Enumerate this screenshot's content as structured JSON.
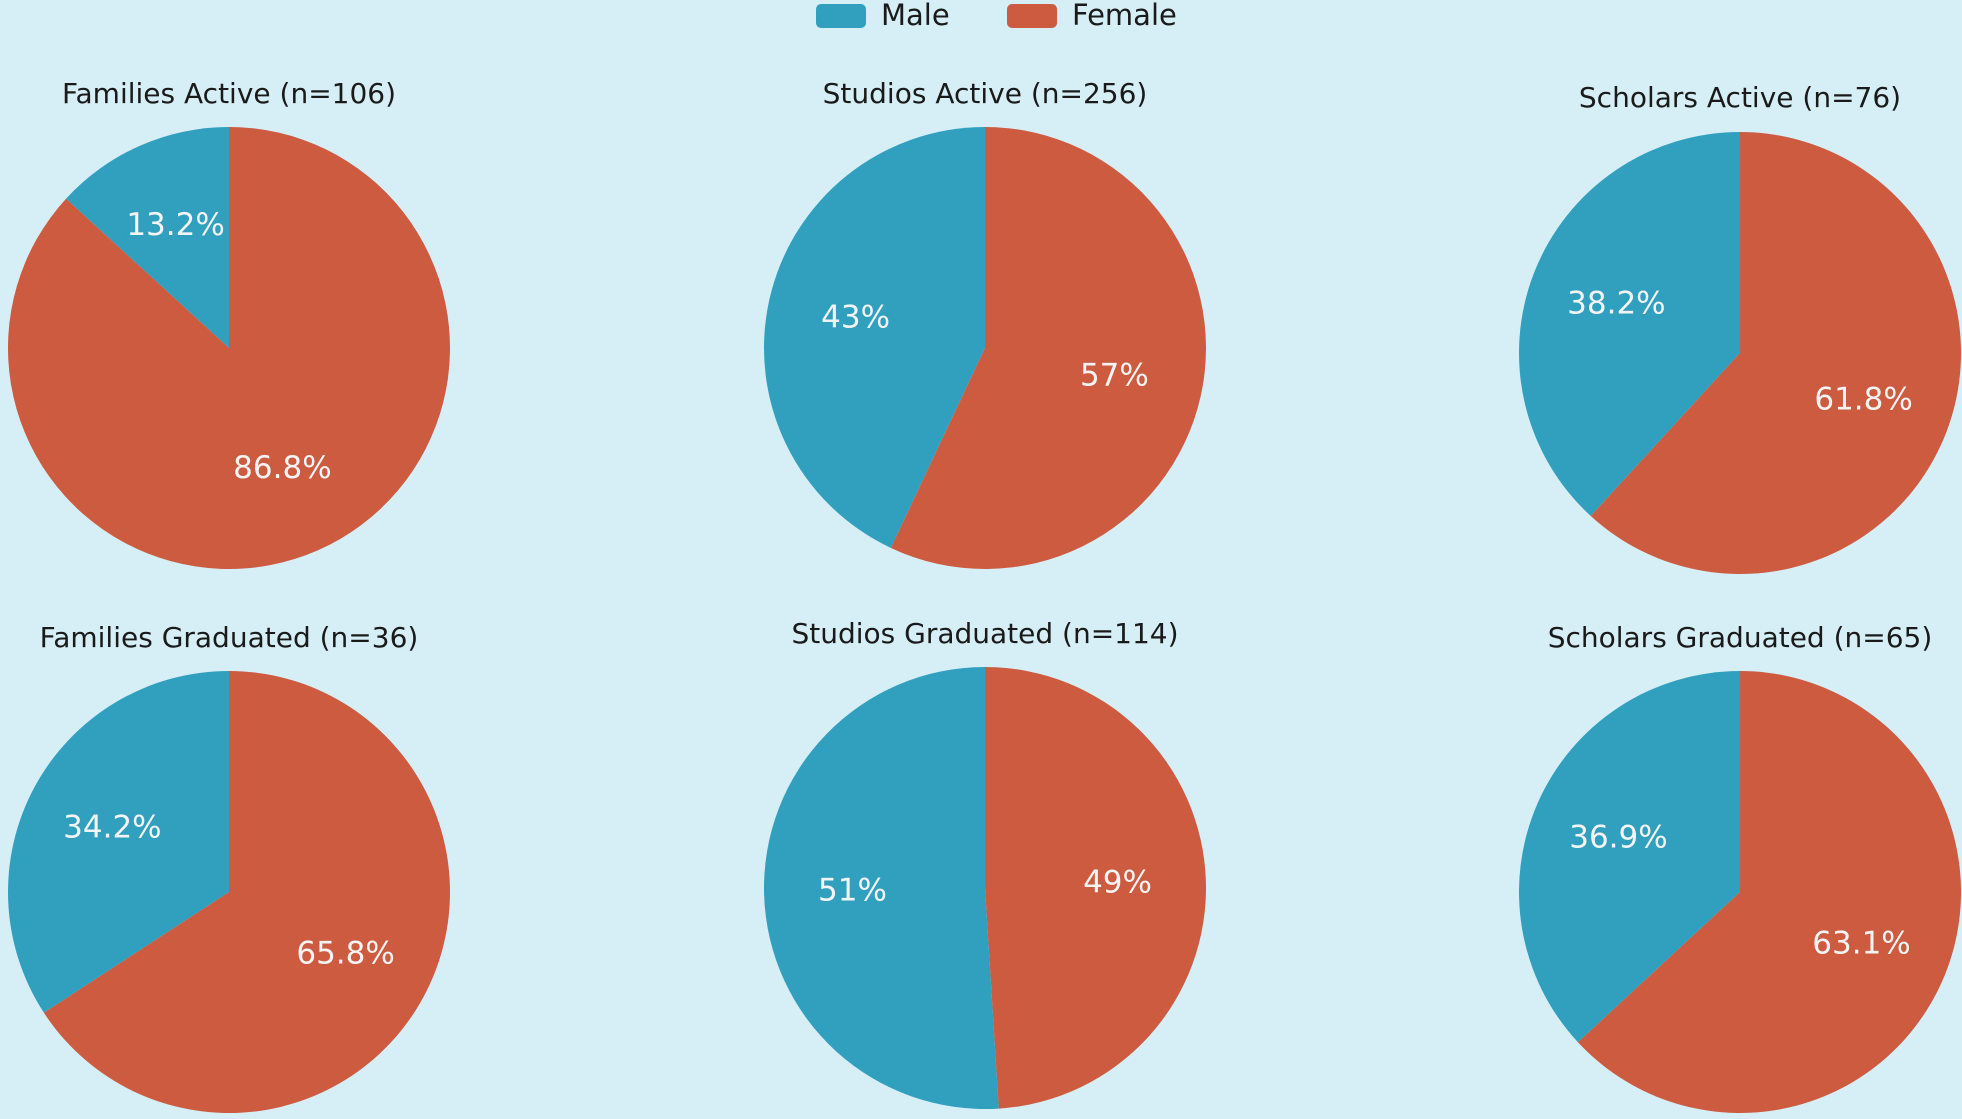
{
  "chart_data": [
    {
      "type": "pie",
      "title": "Families Active (n=106)",
      "categories": [
        "Male",
        "Female"
      ],
      "values": [
        13.2,
        86.8
      ],
      "value_labels": [
        "13.2%",
        "86.8%"
      ],
      "colors": [
        "#31a0bf",
        "#cc5b40"
      ]
    },
    {
      "type": "pie",
      "title": "Studios Active (n=256)",
      "categories": [
        "Male",
        "Female"
      ],
      "values": [
        43,
        57
      ],
      "value_labels": [
        "43%",
        "57%"
      ],
      "colors": [
        "#31a0bf",
        "#cc5b40"
      ]
    },
    {
      "type": "pie",
      "title": "Scholars Active (n=76)",
      "categories": [
        "Male",
        "Female"
      ],
      "values": [
        38.2,
        61.8
      ],
      "value_labels": [
        "38.2%",
        "61.8%"
      ],
      "colors": [
        "#31a0bf",
        "#cc5b40"
      ]
    },
    {
      "type": "pie",
      "title": "Families Graduated (n=36)",
      "categories": [
        "Male",
        "Female"
      ],
      "values": [
        34.2,
        65.8
      ],
      "value_labels": [
        "34.2%",
        "65.8%"
      ],
      "colors": [
        "#31a0bf",
        "#cc5b40"
      ]
    },
    {
      "type": "pie",
      "title": "Studios Graduated (n=114)",
      "categories": [
        "Male",
        "Female"
      ],
      "values": [
        51,
        49
      ],
      "value_labels": [
        "51%",
        "49%"
      ],
      "colors": [
        "#31a0bf",
        "#cc5b40"
      ]
    },
    {
      "type": "pie",
      "title": "Scholars Graduated (n=65)",
      "categories": [
        "Male",
        "Female"
      ],
      "values": [
        36.9,
        63.1
      ],
      "value_labels": [
        "36.9%",
        "63.1%"
      ],
      "colors": [
        "#31a0bf",
        "#cc5b40"
      ]
    }
  ]
}
